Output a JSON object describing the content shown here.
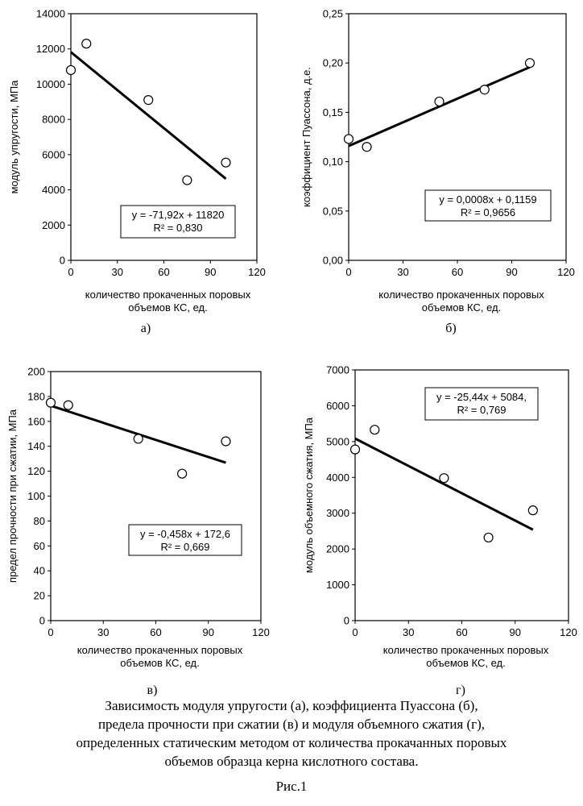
{
  "chart_data": [
    {
      "type": "scatter",
      "panel_label": "а)",
      "ylabel": "модуль упругости, МПа",
      "xlabel": [
        "количество прокаченных поровых",
        "объемов КС, ед."
      ],
      "xlim": [
        0,
        120
      ],
      "ylim": [
        0,
        14000
      ],
      "xticks": [
        0,
        30,
        60,
        90,
        120
      ],
      "yticks": [
        0,
        2000,
        4000,
        6000,
        8000,
        10000,
        12000,
        14000
      ],
      "ytick_labels": [
        "0",
        "2000",
        "4000",
        "6000",
        "8000",
        "10000",
        "12000",
        "14000"
      ],
      "xtick_labels": [
        "0",
        "30",
        "60",
        "90",
        "120"
      ],
      "points": [
        {
          "x": 0,
          "y": 10800
        },
        {
          "x": 10,
          "y": 12300
        },
        {
          "x": 50,
          "y": 9100
        },
        {
          "x": 75,
          "y": 4550
        },
        {
          "x": 100,
          "y": 5550
        }
      ],
      "trendline": {
        "slope": -71.92,
        "intercept": 11820,
        "x_range": [
          0,
          100
        ]
      },
      "equation": [
        "y = -71,92x + 11820",
        "R² = 0,830"
      ],
      "grid": false
    },
    {
      "type": "scatter",
      "panel_label": "б)",
      "ylabel": "коэффициент Пуассона, д.е.",
      "xlabel": [
        "количество прокаченных поровых",
        "объемов КС, ед."
      ],
      "xlim": [
        0,
        120
      ],
      "ylim": [
        0,
        0.25
      ],
      "xticks": [
        0,
        30,
        60,
        90,
        120
      ],
      "yticks": [
        0,
        0.05,
        0.1,
        0.15,
        0.2,
        0.25
      ],
      "ytick_labels": [
        "0,00",
        "0,05",
        "0,10",
        "0,15",
        "0,20",
        "0,25"
      ],
      "xtick_labels": [
        "0",
        "30",
        "60",
        "90",
        "120"
      ],
      "points": [
        {
          "x": 0,
          "y": 0.123
        },
        {
          "x": 10,
          "y": 0.115
        },
        {
          "x": 50,
          "y": 0.161
        },
        {
          "x": 75,
          "y": 0.173
        },
        {
          "x": 100,
          "y": 0.2
        }
      ],
      "trendline": {
        "slope": 0.0008,
        "intercept": 0.1159,
        "x_range": [
          0,
          100
        ]
      },
      "equation": [
        "y = 0,0008x + 0,1159",
        "R² = 0,9656"
      ],
      "grid": false
    },
    {
      "type": "scatter",
      "panel_label": "в)",
      "ylabel": "предел прочности при сжатии, МПа",
      "xlabel": [
        "количество прокаченных поровых",
        "объемов КС, ед."
      ],
      "xlim": [
        0,
        120
      ],
      "ylim": [
        0,
        200
      ],
      "xticks": [
        0,
        30,
        60,
        90,
        120
      ],
      "yticks": [
        0,
        20,
        40,
        60,
        80,
        100,
        120,
        140,
        160,
        180,
        200
      ],
      "ytick_labels": [
        "0",
        "20",
        "40",
        "60",
        "80",
        "100",
        "120",
        "140",
        "160",
        "180",
        "200"
      ],
      "xtick_labels": [
        "0",
        "30",
        "60",
        "90",
        "120"
      ],
      "points": [
        {
          "x": 0,
          "y": 175
        },
        {
          "x": 10,
          "y": 173
        },
        {
          "x": 50,
          "y": 146
        },
        {
          "x": 75,
          "y": 118
        },
        {
          "x": 100,
          "y": 144
        }
      ],
      "trendline": {
        "slope": -0.458,
        "intercept": 172.6,
        "x_range": [
          0,
          100
        ]
      },
      "equation": [
        "y = -0,458x + 172,6",
        "R² = 0,669"
      ],
      "grid": false
    },
    {
      "type": "scatter",
      "panel_label": "г)",
      "ylabel": "модуль объемного сжатия, МПа",
      "xlabel": [
        "количество прокаченных поровых",
        "объемов КС, ед."
      ],
      "xlim": [
        0,
        120
      ],
      "ylim": [
        0,
        7000
      ],
      "xticks": [
        0,
        30,
        60,
        90,
        120
      ],
      "yticks": [
        0,
        1000,
        2000,
        3000,
        4000,
        5000,
        6000,
        7000
      ],
      "ytick_labels": [
        "0",
        "1000",
        "2000",
        "3000",
        "4000",
        "5000",
        "6000",
        "7000"
      ],
      "xtick_labels": [
        "0",
        "30",
        "60",
        "90",
        "120"
      ],
      "points": [
        {
          "x": 0,
          "y": 4780
        },
        {
          "x": 11,
          "y": 5330
        },
        {
          "x": 50,
          "y": 3980
        },
        {
          "x": 75,
          "y": 2320
        },
        {
          "x": 100,
          "y": 3080
        }
      ],
      "trendline": {
        "slope": -25.44,
        "intercept": 5084,
        "x_range": [
          0,
          100
        ]
      },
      "equation": [
        "y = -25,44x + 5084,",
        "R² = 0,769"
      ],
      "grid": false
    }
  ],
  "caption": [
    "Зависимость модуля упругости (а), коэффициента Пуассона (б),",
    "предела прочности при сжатии (в) и модуля объемного сжатия (г),",
    "определенных статическим методом от количества прокачанных поровых",
    "объемов образца керна кислотного состава."
  ],
  "figure_label": "Рис.1"
}
